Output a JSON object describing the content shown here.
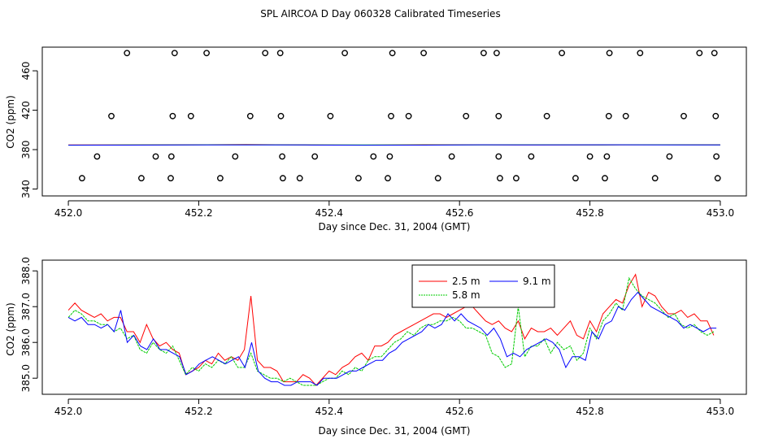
{
  "title": "SPL AIRCOA D  Day 060328  Calibrated Timeseries",
  "chart_data": [
    {
      "type": "scatter",
      "xlabel": "Day since Dec. 31, 2004 (GMT)",
      "ylabel": "CO2 (ppm)",
      "xlim": [
        451.96,
        453.04
      ],
      "ylim": [
        333,
        484
      ],
      "xticks": [
        452.0,
        452.2,
        452.4,
        452.6,
        452.8,
        453.0
      ],
      "xtick_labels": [
        "452.0",
        "452.2",
        "452.4",
        "452.6",
        "452.8",
        "453.0"
      ],
      "yticks": [
        340,
        380,
        420,
        460
      ],
      "ytick_labels": [
        "340",
        "380",
        "420",
        "460"
      ],
      "grid": false,
      "points": [
        {
          "x": 452.09,
          "y": 478
        },
        {
          "x": 452.163,
          "y": 478
        },
        {
          "x": 452.212,
          "y": 478
        },
        {
          "x": 452.302,
          "y": 478
        },
        {
          "x": 452.325,
          "y": 478
        },
        {
          "x": 452.424,
          "y": 478
        },
        {
          "x": 452.497,
          "y": 478
        },
        {
          "x": 452.545,
          "y": 478
        },
        {
          "x": 452.637,
          "y": 478
        },
        {
          "x": 452.657,
          "y": 478
        },
        {
          "x": 452.757,
          "y": 478
        },
        {
          "x": 452.83,
          "y": 478
        },
        {
          "x": 452.877,
          "y": 478
        },
        {
          "x": 452.968,
          "y": 478
        },
        {
          "x": 452.991,
          "y": 478
        },
        {
          "x": 452.066,
          "y": 414
        },
        {
          "x": 452.16,
          "y": 414
        },
        {
          "x": 452.188,
          "y": 414
        },
        {
          "x": 452.279,
          "y": 414
        },
        {
          "x": 452.326,
          "y": 414
        },
        {
          "x": 452.402,
          "y": 414
        },
        {
          "x": 452.495,
          "y": 414
        },
        {
          "x": 452.522,
          "y": 414
        },
        {
          "x": 452.61,
          "y": 414
        },
        {
          "x": 452.66,
          "y": 414
        },
        {
          "x": 452.734,
          "y": 414
        },
        {
          "x": 452.829,
          "y": 414
        },
        {
          "x": 452.855,
          "y": 414
        },
        {
          "x": 452.944,
          "y": 414
        },
        {
          "x": 452.993,
          "y": 414
        },
        {
          "x": 452.044,
          "y": 373
        },
        {
          "x": 452.134,
          "y": 373
        },
        {
          "x": 452.158,
          "y": 373
        },
        {
          "x": 452.256,
          "y": 373
        },
        {
          "x": 452.328,
          "y": 373
        },
        {
          "x": 452.378,
          "y": 373
        },
        {
          "x": 452.468,
          "y": 373
        },
        {
          "x": 452.493,
          "y": 373
        },
        {
          "x": 452.588,
          "y": 373
        },
        {
          "x": 452.66,
          "y": 373
        },
        {
          "x": 452.71,
          "y": 373
        },
        {
          "x": 452.8,
          "y": 373
        },
        {
          "x": 452.826,
          "y": 373
        },
        {
          "x": 452.922,
          "y": 373
        },
        {
          "x": 452.994,
          "y": 373
        },
        {
          "x": 452.021,
          "y": 351
        },
        {
          "x": 452.112,
          "y": 351
        },
        {
          "x": 452.157,
          "y": 351
        },
        {
          "x": 452.233,
          "y": 351
        },
        {
          "x": 452.329,
          "y": 351
        },
        {
          "x": 452.355,
          "y": 351
        },
        {
          "x": 452.445,
          "y": 351
        },
        {
          "x": 452.49,
          "y": 351
        },
        {
          "x": 452.567,
          "y": 351
        },
        {
          "x": 452.662,
          "y": 351
        },
        {
          "x": 452.687,
          "y": 351
        },
        {
          "x": 452.778,
          "y": 351
        },
        {
          "x": 452.823,
          "y": 351
        },
        {
          "x": 452.9,
          "y": 351
        },
        {
          "x": 452.996,
          "y": 351
        }
      ],
      "series": [
        {
          "color": "#ff0000",
          "values": [
            384.7,
            384.8,
            384.9,
            385.2,
            384.8,
            384.6,
            385.0,
            384.9,
            384.7,
            384.8,
            385.0,
            384.9
          ]
        },
        {
          "color": "#00cc00",
          "values": [
            384.6,
            384.7,
            384.8,
            384.9,
            384.8,
            384.7,
            384.7,
            384.8,
            384.9,
            384.8,
            384.9,
            384.8
          ]
        },
        {
          "color": "#0000ff",
          "values": [
            384.5,
            384.6,
            384.7,
            384.8,
            384.7,
            384.5,
            384.6,
            384.9,
            384.7,
            384.9,
            384.8,
            384.7
          ]
        }
      ],
      "series_x_range": [
        452.0,
        453.0
      ]
    },
    {
      "type": "line",
      "xlabel": "Day since Dec. 31, 2004 (GMT)",
      "ylabel": "CO2 (ppm)",
      "xlim": [
        451.96,
        453.04
      ],
      "ylim": [
        384.55,
        388.3
      ],
      "xticks": [
        452.0,
        452.2,
        452.4,
        452.6,
        452.8,
        453.0
      ],
      "xtick_labels": [
        "452.0",
        "452.2",
        "452.4",
        "452.6",
        "452.8",
        "453.0"
      ],
      "yticks": [
        385.0,
        386.0,
        387.0,
        388.0
      ],
      "ytick_labels": [
        "385.0",
        "386.0",
        "387.0",
        "388.0"
      ],
      "grid": false,
      "legend_placement": "top-center",
      "series": [
        {
          "name": "2.5 m",
          "color": "#ff0000",
          "x_range": [
            452.0,
            452.99
          ],
          "values": [
            386.9,
            387.1,
            386.9,
            386.8,
            386.7,
            386.8,
            386.6,
            386.7,
            386.7,
            386.3,
            386.3,
            386.0,
            386.5,
            386.1,
            385.9,
            386.0,
            385.8,
            385.7,
            385.1,
            385.2,
            385.3,
            385.5,
            385.4,
            385.7,
            385.5,
            385.6,
            385.5,
            385.8,
            387.3,
            385.5,
            385.3,
            385.3,
            385.2,
            384.9,
            384.9,
            384.9,
            385.1,
            385.0,
            384.8,
            385.0,
            385.2,
            385.1,
            385.3,
            385.4,
            385.6,
            385.7,
            385.5,
            385.9,
            385.9,
            386.0,
            386.2,
            386.3,
            386.4,
            386.5,
            386.6,
            386.7,
            386.8,
            386.8,
            386.7,
            386.8,
            386.9,
            387.0,
            387.0,
            386.8,
            386.6,
            386.5,
            386.6,
            386.4,
            386.3,
            386.6,
            386.1,
            386.4,
            386.3,
            386.3,
            386.4,
            386.2,
            386.4,
            386.6,
            386.2,
            386.1,
            386.6,
            386.3,
            386.8,
            387.0,
            387.2,
            387.1,
            387.6,
            387.9,
            387.0,
            387.4,
            387.3,
            387.0,
            386.8,
            386.8,
            386.9,
            386.7,
            386.8,
            386.6,
            386.6,
            386.2
          ]
        },
        {
          "name": "5.8 m",
          "color": "#00cc00",
          "x_range": [
            452.0,
            452.99
          ],
          "values": [
            386.7,
            386.9,
            386.8,
            386.6,
            386.6,
            386.5,
            386.5,
            386.3,
            386.4,
            386.1,
            386.2,
            385.8,
            385.7,
            386.0,
            385.8,
            385.7,
            385.9,
            385.5,
            385.1,
            385.3,
            385.2,
            385.4,
            385.3,
            385.5,
            385.4,
            385.6,
            385.3,
            385.3,
            385.7,
            385.2,
            385.1,
            385.0,
            385.0,
            384.9,
            385.0,
            384.9,
            384.8,
            384.8,
            384.8,
            384.9,
            385.0,
            385.0,
            385.2,
            385.1,
            385.3,
            385.2,
            385.5,
            385.6,
            385.6,
            385.8,
            386.0,
            386.1,
            386.3,
            386.2,
            386.4,
            386.5,
            386.5,
            386.6,
            386.6,
            386.7,
            386.6,
            386.4,
            386.4,
            386.3,
            386.2,
            385.7,
            385.6,
            385.3,
            385.4,
            387.0,
            385.6,
            385.9,
            385.9,
            386.1,
            385.7,
            386.0,
            385.8,
            385.9,
            385.5,
            385.7,
            386.4,
            386.1,
            386.6,
            386.8,
            387.1,
            386.9,
            387.8,
            387.5,
            387.3,
            387.2,
            387.1,
            386.9,
            386.7,
            386.8,
            386.5,
            386.4,
            386.5,
            386.3,
            386.2,
            386.3
          ]
        },
        {
          "name": "9.1 m",
          "color": "#0000ff",
          "x_range": [
            452.0,
            452.994
          ],
          "values": [
            386.7,
            386.6,
            386.7,
            386.5,
            386.5,
            386.4,
            386.5,
            386.3,
            386.9,
            386.0,
            386.2,
            385.9,
            385.8,
            386.1,
            385.8,
            385.8,
            385.7,
            385.6,
            385.1,
            385.2,
            385.4,
            385.5,
            385.6,
            385.5,
            385.4,
            385.5,
            385.6,
            385.3,
            386.0,
            385.2,
            385.0,
            384.9,
            384.9,
            384.8,
            384.8,
            384.9,
            384.9,
            384.9,
            384.8,
            385.0,
            385.0,
            385.0,
            385.1,
            385.2,
            385.2,
            385.3,
            385.4,
            385.5,
            385.5,
            385.7,
            385.8,
            386.0,
            386.1,
            386.2,
            386.3,
            386.5,
            386.4,
            386.5,
            386.8,
            386.6,
            386.8,
            386.6,
            386.5,
            386.4,
            386.2,
            386.4,
            386.1,
            385.6,
            385.7,
            385.6,
            385.8,
            385.9,
            386.0,
            386.1,
            386.0,
            385.8,
            385.3,
            385.6,
            385.6,
            385.5,
            386.3,
            386.1,
            386.5,
            386.6,
            387.0,
            386.9,
            387.2,
            387.4,
            387.2,
            387.0,
            386.9,
            386.8,
            386.7,
            386.6,
            386.4,
            386.5,
            386.4,
            386.3,
            386.4,
            386.4
          ]
        }
      ]
    }
  ]
}
